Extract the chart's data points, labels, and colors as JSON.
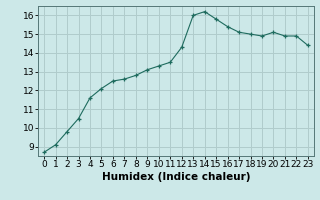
{
  "x": [
    0,
    1,
    2,
    3,
    4,
    5,
    6,
    7,
    8,
    9,
    10,
    11,
    12,
    13,
    14,
    15,
    16,
    17,
    18,
    19,
    20,
    21,
    22,
    23
  ],
  "y": [
    8.7,
    9.1,
    9.8,
    10.5,
    11.6,
    12.1,
    12.5,
    12.6,
    12.8,
    13.1,
    13.3,
    13.5,
    14.3,
    16.0,
    16.2,
    15.8,
    15.4,
    15.1,
    15.0,
    14.9,
    15.1,
    14.9,
    14.9,
    14.4
  ],
  "xlabel": "Humidex (Indice chaleur)",
  "ylim": [
    8.5,
    16.5
  ],
  "xlim": [
    -0.5,
    23.5
  ],
  "bg_color": "#cce8e8",
  "grid_color": "#b0cccc",
  "line_color": "#1e6b5e",
  "marker_color": "#1e6b5e",
  "yticks": [
    9,
    10,
    11,
    12,
    13,
    14,
    15,
    16
  ],
  "xtick_labels": [
    "0",
    "1",
    "2",
    "3",
    "4",
    "5",
    "6",
    "7",
    "8",
    "9",
    "10",
    "11",
    "12",
    "13",
    "14",
    "15",
    "16",
    "17",
    "18",
    "19",
    "20",
    "21",
    "22",
    "23"
  ],
  "ylabel_fontsize": 7,
  "tick_fontsize": 6.5,
  "xlabel_fontsize": 7.5
}
